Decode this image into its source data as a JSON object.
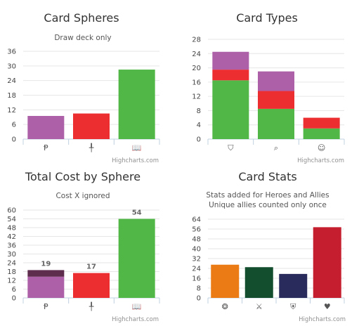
{
  "chart_data": [
    {
      "type": "bar",
      "title": "Card Spheres",
      "subtitle": "Draw deck only",
      "categories": [
        "leadership",
        "tactics",
        "lore"
      ],
      "category_icons": [
        "leadership-icon",
        "tactics-icon",
        "lore-icon"
      ],
      "category_glyphs": [
        "Ᵽ",
        "╀",
        "📖"
      ],
      "values": [
        9.5,
        10.5,
        28.5
      ],
      "colors": [
        "#ad5fa7",
        "#ed2e30",
        "#51b848"
      ],
      "ylim": [
        0,
        36
      ],
      "yticks": [
        0,
        6,
        12,
        18,
        24,
        30,
        36
      ],
      "credit": "Highcharts.com"
    },
    {
      "type": "bar",
      "stacked": true,
      "title": "Card Types",
      "categories": [
        "attachment",
        "event",
        "ally"
      ],
      "category_icons": [
        "shield-icon",
        "magnifier-icon",
        "ally-icon"
      ],
      "category_glyphs": [
        "⛉",
        "⌕",
        "☺"
      ],
      "series": [
        {
          "values": [
            16.5,
            8.5,
            3
          ],
          "color": "#51b848"
        },
        {
          "values": [
            3,
            5,
            3
          ],
          "color": "#ed2e30"
        },
        {
          "values": [
            5,
            5.5,
            0
          ],
          "color": "#ad5fa7"
        }
      ],
      "ylim": [
        0,
        28
      ],
      "yticks": [
        0,
        4,
        8,
        12,
        16,
        20,
        24,
        28
      ],
      "credit": "Highcharts.com"
    },
    {
      "type": "bar",
      "stacked": true,
      "title": "Total Cost by Sphere",
      "subtitle": "Cost X ignored",
      "categories": [
        "leadership",
        "tactics",
        "lore"
      ],
      "category_icons": [
        "leadership-icon",
        "tactics-icon",
        "lore-icon"
      ],
      "category_glyphs": [
        "Ᵽ",
        "╀",
        "📖"
      ],
      "series": [
        {
          "values": [
            14.5,
            17,
            54
          ],
          "colors": [
            "#ad5fa7",
            "#ed2e30",
            "#51b848"
          ]
        },
        {
          "values": [
            4.5,
            0,
            0
          ],
          "colors": [
            "#5e2d4d",
            "#5e2d4d",
            "#5e2d4d"
          ]
        }
      ],
      "totals": [
        "19",
        "17",
        "54"
      ],
      "ylim": [
        0,
        60
      ],
      "yticks": [
        0,
        6,
        12,
        18,
        24,
        30,
        36,
        42,
        48,
        54,
        60
      ],
      "credit": "Highcharts.com"
    },
    {
      "type": "bar",
      "title": "Card Stats",
      "subtitle": [
        "Stats added for Heroes and Allies",
        "Unique allies counted only once"
      ],
      "categories": [
        "willpower",
        "attack",
        "defense",
        "hit points"
      ],
      "category_icons": [
        "willpower-icon",
        "attack-icon",
        "defense-icon",
        "hit-points-icon"
      ],
      "category_glyphs": [
        "❂",
        "⚔",
        "⛨",
        "♥"
      ],
      "values": [
        27,
        25,
        19.5,
        57.5
      ],
      "colors": [
        "#ea7b15",
        "#134f2f",
        "#282b5c",
        "#c51e2e"
      ],
      "ylim": [
        0,
        64
      ],
      "yticks": [
        0,
        8,
        16,
        24,
        32,
        40,
        48,
        56,
        64
      ],
      "credit": "Highcharts.com"
    }
  ]
}
